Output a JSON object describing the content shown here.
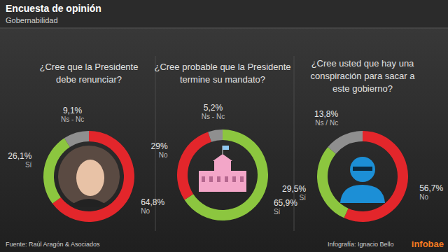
{
  "title": "Encuesta de opinión",
  "subtitle": "Gobernabilidad",
  "source": "Fuente: Raúl Aragón & Asociados",
  "credit": "Infografía: Ignacio Bello",
  "brand": "infobae",
  "chart_data": [
    {
      "type": "donut",
      "title": [
        "¿Cree que la Presidente",
        "debe renunciar?"
      ],
      "categories": [
        "No",
        "Sí",
        "Ns - Nc"
      ],
      "values": [
        64.8,
        26.1,
        9.1
      ],
      "value_labels": [
        "64,8%",
        "26,1%",
        "9,1%"
      ],
      "colors": [
        "#e3262b",
        "#8cc63f",
        "#8f8f8f"
      ],
      "data_labels": true
    },
    {
      "type": "donut",
      "title": [
        "¿Cree probable que la Presidente",
        "termine su mandato?"
      ],
      "categories": [
        "Sí",
        "No",
        "Ns - Nc"
      ],
      "values": [
        65.9,
        29,
        5.2
      ],
      "value_labels": [
        "65,9%",
        "29%",
        "5,2%"
      ],
      "colors": [
        "#8cc63f",
        "#e3262b",
        "#8f8f8f"
      ],
      "data_labels": true
    },
    {
      "type": "donut",
      "title": [
        "¿Cree usted que hay una",
        "conspiración para sacar a",
        "este gobierno?"
      ],
      "categories": [
        "No",
        "Sí",
        "Ns / Nc"
      ],
      "values": [
        56.7,
        29.5,
        13.8
      ],
      "value_labels": [
        "56,7%",
        "29,5%",
        "13,8%"
      ],
      "colors": [
        "#e3262b",
        "#8cc63f",
        "#8f8f8f"
      ],
      "data_labels": true
    }
  ]
}
